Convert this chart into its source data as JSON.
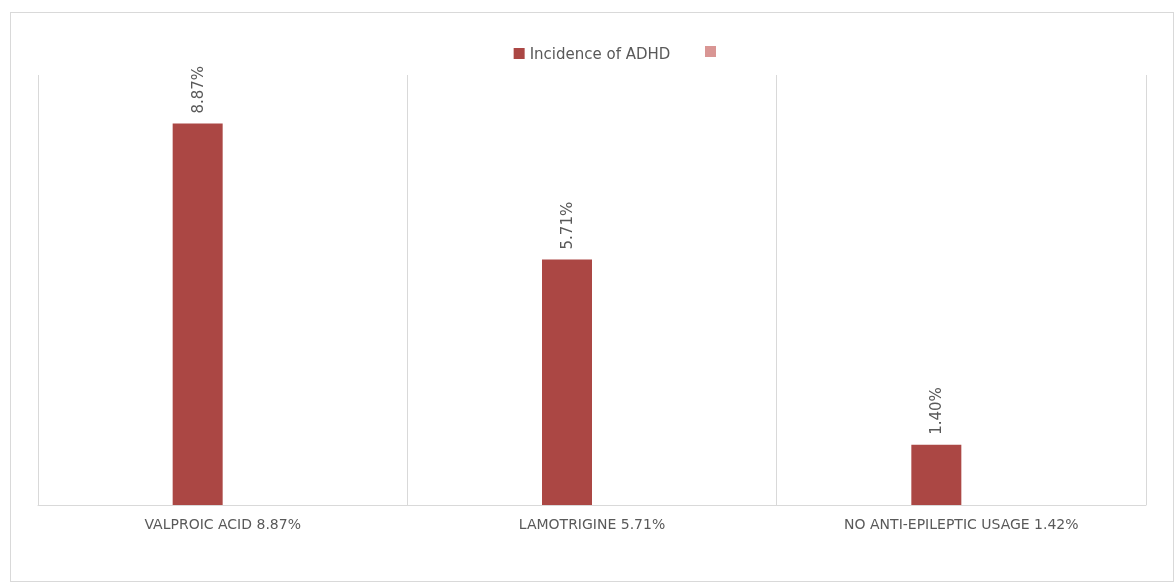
{
  "chart_data": {
    "type": "bar",
    "categories": [
      "VALPROIC ACID 8.87%",
      "LAMOTRIGINE 5.71%",
      "NO ANTI-EPILEPTIC USAGE 1.42%"
    ],
    "series": [
      {
        "name": "Incidence of ADHD",
        "color": "#ab4744",
        "values": [
          8.87,
          5.71,
          1.4
        ],
        "value_labels": [
          "8.87%",
          "5.71%",
          "1.40%"
        ]
      },
      {
        "color": "#d99694",
        "values": [
          null,
          null,
          null
        ]
      }
    ],
    "legend": "top",
    "grid": "x"
  }
}
